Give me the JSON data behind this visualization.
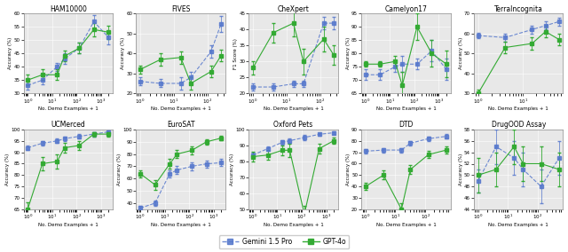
{
  "datasets": [
    {
      "title": "HAM10000",
      "ylabel": "Accuracy (%)",
      "xlabel": "No. Demo Examples + 1",
      "ylim": [
        30,
        60
      ],
      "yticks": [
        30,
        35,
        40,
        45,
        50,
        55,
        60
      ],
      "xlim_log": [
        0.7,
        15000
      ],
      "blue": {
        "x": [
          1,
          4,
          16,
          32,
          128,
          512,
          2048
        ],
        "y": [
          33,
          35,
          40,
          43,
          47,
          57,
          51
        ],
        "yerr": [
          1.5,
          1.5,
          1.5,
          2,
          2,
          2.5,
          2.5
        ]
      },
      "green": {
        "x": [
          1,
          4,
          16,
          32,
          128,
          512,
          2048
        ],
        "y": [
          35,
          37,
          37,
          44,
          47,
          54,
          53
        ],
        "yerr": [
          2,
          2,
          2,
          2,
          2,
          2.5,
          2.5
        ]
      }
    },
    {
      "title": "FIVES",
      "ylabel": "Accuracy (%)",
      "xlabel": "No. Demo Examples + 1",
      "ylim": [
        20,
        60
      ],
      "yticks": [
        20,
        30,
        40,
        50,
        60
      ],
      "xlim_log": [
        0.7,
        500
      ],
      "blue": {
        "x": [
          1,
          4,
          16,
          32,
          128,
          256
        ],
        "y": [
          26,
          25,
          25,
          28,
          41,
          55
        ],
        "yerr": [
          2,
          2,
          3,
          3,
          3,
          4
        ]
      },
      "green": {
        "x": [
          1,
          4,
          16,
          32,
          128,
          256
        ],
        "y": [
          32,
          37,
          38,
          25,
          31,
          39
        ],
        "yerr": [
          2,
          3,
          3,
          3,
          3,
          3
        ]
      }
    },
    {
      "title": "CheXpert",
      "ylabel": "F1 Score (%)",
      "xlabel": "No. Demo Examples + 1",
      "ylim": [
        20,
        45
      ],
      "yticks": [
        20,
        25,
        30,
        35,
        40,
        45
      ],
      "xlim_log": [
        0.7,
        500
      ],
      "blue": {
        "x": [
          1,
          4,
          16,
          32,
          128,
          256
        ],
        "y": [
          22,
          22,
          23,
          23,
          42,
          42
        ],
        "yerr": [
          1,
          1,
          1,
          1,
          2,
          2
        ]
      },
      "green": {
        "x": [
          1,
          4,
          16,
          32,
          128,
          256
        ],
        "y": [
          28,
          39,
          42,
          30,
          37,
          32
        ],
        "yerr": [
          2,
          3,
          4,
          4,
          4,
          3
        ]
      }
    },
    {
      "title": "Camelyon17",
      "ylabel": "Accuracy (%)",
      "xlabel": "No. Demo Examples + 1",
      "ylim": [
        65,
        95
      ],
      "yticks": [
        65,
        70,
        75,
        80,
        85,
        90,
        95
      ],
      "xlim_log": [
        0.7,
        15000
      ],
      "blue": {
        "x": [
          1,
          4,
          16,
          32,
          128,
          512,
          2048
        ],
        "y": [
          72,
          72,
          75,
          76,
          76,
          81,
          74
        ],
        "yerr": [
          2,
          2,
          2,
          3,
          2,
          4,
          4
        ]
      },
      "green": {
        "x": [
          1,
          4,
          16,
          32,
          128,
          512,
          2048
        ],
        "y": [
          76,
          76,
          77,
          68,
          90,
          80,
          76
        ],
        "yerr": [
          1,
          1,
          2,
          5,
          5,
          5,
          5
        ]
      }
    },
    {
      "title": "TerraIncognita",
      "ylabel": "Accuracy (%)",
      "xlabel": "No. Demo Examples + 1",
      "ylim": [
        30,
        70
      ],
      "yticks": [
        30,
        40,
        50,
        60,
        70
      ],
      "xlim_log": [
        0.7,
        150
      ],
      "blue": {
        "x": [
          1,
          4,
          16,
          32,
          64
        ],
        "y": [
          59,
          58,
          62,
          64,
          66
        ],
        "yerr": [
          1.5,
          2,
          2,
          2,
          2
        ]
      },
      "green": {
        "x": [
          1,
          4,
          16,
          32,
          64
        ],
        "y": [
          30,
          53,
          55,
          61,
          57
        ],
        "yerr": [
          2,
          3,
          3,
          3,
          3
        ]
      }
    },
    {
      "title": "UCMerced",
      "ylabel": "Accuracy (%)",
      "xlabel": "No. Demo Examples + 1",
      "ylim": [
        65,
        100
      ],
      "yticks": [
        65,
        70,
        75,
        80,
        85,
        90,
        95,
        100
      ],
      "xlim_log": [
        0.7,
        15000
      ],
      "blue": {
        "x": [
          1,
          4,
          16,
          32,
          128,
          512,
          2048
        ],
        "y": [
          92,
          94,
          95,
          96,
          97,
          98,
          99
        ],
        "yerr": [
          1,
          1,
          1,
          1,
          1,
          1,
          0.5
        ]
      },
      "green": {
        "x": [
          1,
          4,
          16,
          32,
          128,
          512,
          2048
        ],
        "y": [
          65,
          85,
          86,
          92,
          93,
          98,
          98
        ],
        "yerr": [
          3,
          3,
          3,
          2,
          2,
          1,
          1
        ]
      }
    },
    {
      "title": "EuroSAT",
      "ylabel": "Accuracy (%)",
      "xlabel": "No. Demo Examples + 1",
      "ylim": [
        35,
        100
      ],
      "yticks": [
        40,
        50,
        60,
        70,
        80,
        90,
        100
      ],
      "xlim_log": [
        0.7,
        15000
      ],
      "blue": {
        "x": [
          1,
          4,
          16,
          32,
          128,
          512,
          2048
        ],
        "y": [
          36,
          40,
          64,
          67,
          70,
          72,
          73
        ],
        "yerr": [
          2,
          2,
          3,
          3,
          3,
          3,
          3
        ]
      },
      "green": {
        "x": [
          1,
          4,
          16,
          32,
          128,
          512,
          2048
        ],
        "y": [
          64,
          55,
          72,
          80,
          83,
          90,
          93
        ],
        "yerr": [
          3,
          4,
          4,
          3,
          3,
          2,
          2
        ]
      }
    },
    {
      "title": "Oxford Pets",
      "ylabel": "Accuracy (%)",
      "xlabel": "No. Demo Examples + 1",
      "ylim": [
        50,
        100
      ],
      "yticks": [
        50,
        60,
        70,
        80,
        90,
        100
      ],
      "xlim_log": [
        0.7,
        1500000
      ],
      "blue": {
        "x": [
          1,
          4,
          16,
          32,
          128,
          512,
          2048
        ],
        "y": [
          84,
          88,
          92,
          93,
          95,
          97,
          98
        ],
        "yerr": [
          1.5,
          1.5,
          1.5,
          1.5,
          1.5,
          1,
          1
        ]
      },
      "green": {
        "x": [
          1,
          4,
          16,
          32,
          128,
          512,
          2048
        ],
        "y": [
          83,
          84,
          87,
          87,
          47,
          88,
          93
        ],
        "yerr": [
          3,
          3,
          3,
          4,
          5,
          3,
          2
        ]
      }
    },
    {
      "title": "DTD",
      "ylabel": "Accuracy (%)",
      "xlabel": "No. Demo Examples + 1",
      "ylim": [
        20,
        90
      ],
      "yticks": [
        20,
        30,
        40,
        50,
        60,
        70,
        80,
        90
      ],
      "xlim_log": [
        0.7,
        1500
      ],
      "blue": {
        "x": [
          1,
          4,
          16,
          32,
          128,
          512
        ],
        "y": [
          71,
          72,
          72,
          78,
          82,
          84
        ],
        "yerr": [
          2,
          2,
          2,
          2,
          2,
          2
        ]
      },
      "green": {
        "x": [
          1,
          4,
          16,
          32,
          128,
          512
        ],
        "y": [
          40,
          50,
          20,
          55,
          68,
          72
        ],
        "yerr": [
          3,
          4,
          5,
          4,
          3,
          3
        ]
      }
    },
    {
      "title": "DrugOOD Assay",
      "ylabel": "Accuracy (%)",
      "xlabel": "No. Demo Examples + 1",
      "ylim": [
        44,
        58
      ],
      "yticks": [
        44,
        46,
        48,
        50,
        52,
        54,
        56,
        58
      ],
      "xlim_log": [
        0.7,
        1500
      ],
      "blue": {
        "x": [
          1,
          4,
          16,
          32,
          128,
          512
        ],
        "y": [
          49,
          55,
          53,
          51,
          48,
          53
        ],
        "yerr": [
          2,
          3,
          3,
          3,
          3,
          3
        ]
      },
      "green": {
        "x": [
          1,
          4,
          16,
          32,
          128,
          512
        ],
        "y": [
          50,
          51,
          55,
          52,
          52,
          51
        ],
        "yerr": [
          3,
          3,
          3,
          3,
          3,
          3
        ]
      }
    }
  ],
  "blue_color": "#5577CC",
  "green_color": "#33AA33",
  "blue_label": "Gemini 1.5 Pro",
  "green_label": "GPT-4o",
  "bg_color": "#e8e8e8",
  "fig_bg": "#ffffff"
}
